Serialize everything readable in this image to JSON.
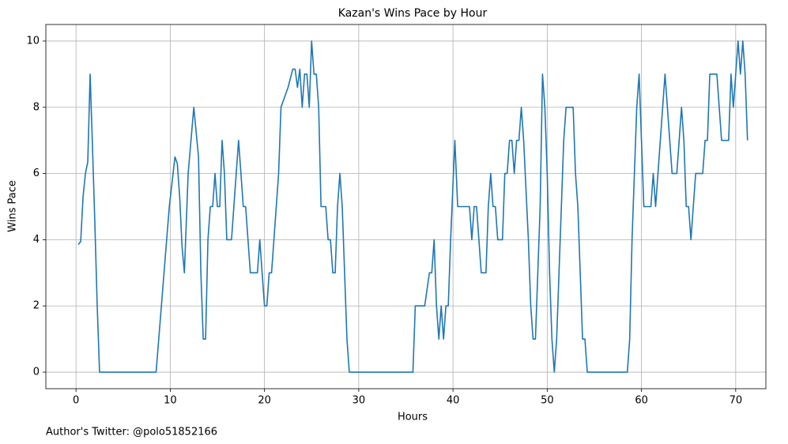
{
  "chart_data": {
    "type": "line",
    "title": "Kazan's Wins Pace by Hour",
    "xlabel": "Hours",
    "ylabel": "Wins Pace",
    "footnote": "Author's Twitter: @polo51852166",
    "grid": true,
    "color": "#1f77b4",
    "xlim": [
      -3.2,
      73.2
    ],
    "ylim": [
      -0.5,
      10.5
    ],
    "xticks": [
      0,
      10,
      20,
      30,
      40,
      50,
      60,
      70
    ],
    "yticks": [
      0,
      2,
      4,
      6,
      8,
      10
    ],
    "x": [
      0.25,
      0.5,
      0.75,
      1,
      1.25,
      1.5,
      1.75,
      2,
      2.25,
      2.5,
      8.5,
      9.9,
      10.5,
      10.75,
      11,
      11.25,
      11.5,
      11.9,
      12.5,
      13,
      13.25,
      13.5,
      13.75,
      14,
      14.25,
      14.5,
      14.75,
      15,
      15.25,
      15.5,
      15.75,
      16,
      16.5,
      17,
      17.25,
      17.5,
      17.75,
      18,
      18.5,
      19.25,
      19.5,
      19.75,
      20,
      20.25,
      20.5,
      20.75,
      21.5,
      21.75,
      22.5,
      23,
      23.25,
      23.5,
      23.75,
      24,
      24.25,
      24.5,
      24.75,
      25,
      25.25,
      25.5,
      25.75,
      26,
      26.5,
      26.75,
      27,
      27.25,
      27.5,
      27.75,
      28,
      28.25,
      28.5,
      28.75,
      29,
      35.75,
      36,
      37,
      37.5,
      37.75,
      38,
      38.25,
      38.5,
      38.75,
      39,
      39.25,
      39.5,
      39.75,
      40.2,
      40.5,
      41.75,
      42,
      42.25,
      42.5,
      42.75,
      43,
      43.5,
      43.75,
      44,
      44.25,
      44.5,
      44.75,
      45.25,
      45.5,
      45.75,
      46,
      46.25,
      46.5,
      46.75,
      47,
      47.25,
      47.5,
      48,
      48.25,
      48.5,
      48.75,
      49,
      49.25,
      49.5,
      49.75,
      50,
      50.25,
      50.5,
      50.75,
      51,
      51.25,
      51.75,
      52,
      52.75,
      53,
      53.25,
      53.5,
      53.75,
      54,
      54.25,
      58.5,
      58.75,
      59,
      59.5,
      59.75,
      60,
      60.25,
      61,
      61.25,
      61.5,
      62,
      62.5,
      63,
      63.25,
      63.75,
      64.25,
      64.5,
      64.75,
      65,
      65.25,
      65.5,
      65.75,
      66.5,
      66.75,
      67,
      67.25,
      68,
      68.25,
      68.5,
      69.25,
      69.5,
      69.75,
      70,
      70.25,
      70.5,
      70.75,
      71,
      71.25
    ],
    "values": [
      3.85,
      3.95,
      5.3,
      6,
      6.35,
      9,
      6.8,
      4.5,
      2,
      0,
      0,
      5,
      6.5,
      6.3,
      5.3,
      3.8,
      3,
      6,
      8,
      6.5,
      3,
      1,
      1,
      4,
      5,
      5,
      6,
      5,
      5,
      7,
      6,
      4,
      4,
      6,
      7,
      6,
      5,
      5,
      3,
      3,
      4,
      3,
      2,
      2,
      3,
      3,
      6,
      8,
      8.6,
      9.15,
      9.15,
      8.6,
      9.15,
      8,
      9,
      9,
      8,
      10,
      9,
      9,
      8,
      5,
      5,
      4,
      4,
      3,
      3,
      5,
      6,
      5,
      3,
      1,
      0,
      0,
      2,
      2,
      3,
      3,
      4,
      2,
      1,
      2,
      1,
      2,
      2,
      4,
      7,
      5,
      5,
      4,
      5,
      5,
      4,
      3,
      3,
      5,
      6,
      5,
      5,
      4,
      4,
      6,
      6,
      7,
      7,
      6,
      7,
      7,
      8,
      7,
      4,
      2,
      1,
      1,
      3,
      5,
      9,
      8,
      6,
      3,
      1,
      0,
      1,
      3,
      7,
      8,
      8,
      6,
      5,
      3,
      1,
      1,
      0,
      0,
      1,
      4,
      8,
      9,
      7,
      5,
      5,
      6,
      5,
      7,
      9,
      7,
      6,
      6,
      8,
      7,
      5,
      5,
      4,
      5,
      6,
      6,
      7,
      7,
      9,
      9,
      8,
      7,
      7,
      9,
      8,
      9,
      10,
      9,
      10,
      9,
      7
    ]
  }
}
